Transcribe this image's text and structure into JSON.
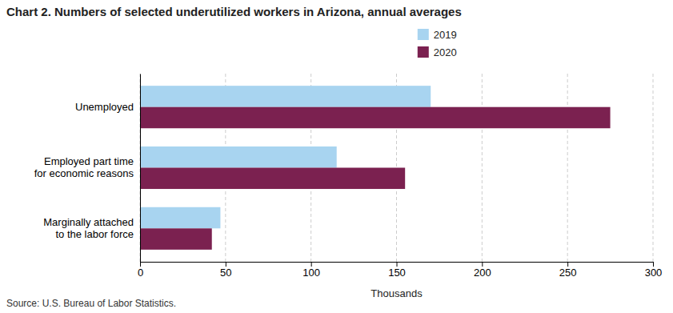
{
  "chart_data": {
    "type": "bar",
    "orientation": "horizontal",
    "title": "Chart 2. Numbers of selected underutilized workers in Arizona, annual averages",
    "categories": [
      "Marginally attached\nto the labor force",
      "Employed part time\nfor economic reasons",
      "Unemployed"
    ],
    "series": [
      {
        "name": "2019",
        "color": "#a8d4f0",
        "values": [
          47,
          115,
          170
        ]
      },
      {
        "name": "2020",
        "color": "#7b2150",
        "values": [
          42,
          155,
          275
        ]
      }
    ],
    "xlim": [
      0,
      300
    ],
    "xticks": [
      0,
      50,
      100,
      150,
      200,
      250,
      300
    ],
    "xlabel": "Thousands",
    "annotations": [
      "Source: U.S. Bureau of Labor Statistics."
    ],
    "grid": true,
    "legend": "top"
  }
}
